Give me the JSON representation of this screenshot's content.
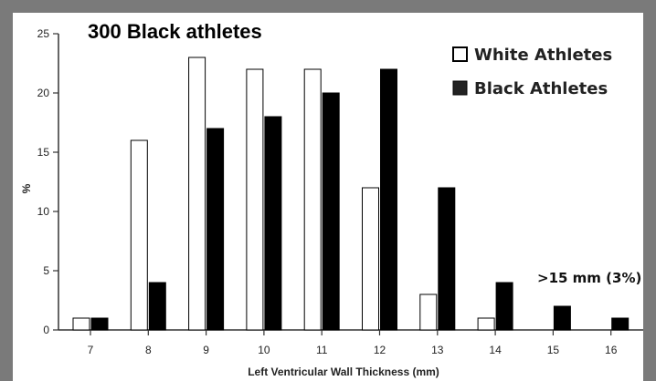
{
  "chart_data": {
    "type": "bar",
    "title": "300  Black athletes",
    "xlabel": "Left Ventricular Wall Thickness (mm)",
    "ylabel": "%",
    "categories": [
      "7",
      "8",
      "9",
      "10",
      "11",
      "12",
      "13",
      "14",
      "15",
      "16"
    ],
    "ylim": [
      0,
      25
    ],
    "yticks": [
      "0",
      "5",
      "10",
      "15",
      "20",
      "25"
    ],
    "series": [
      {
        "name": "White Athletes",
        "color": "#ffffff",
        "values": [
          1,
          16,
          23,
          22,
          22,
          12,
          3,
          1,
          0,
          0
        ]
      },
      {
        "name": "Black Athletes",
        "color": "#000000",
        "values": [
          1,
          4,
          17,
          18,
          20,
          22,
          12,
          4,
          2,
          1
        ]
      }
    ],
    "legend_position": "top-right",
    "annotation": ">15 mm (3%)"
  }
}
